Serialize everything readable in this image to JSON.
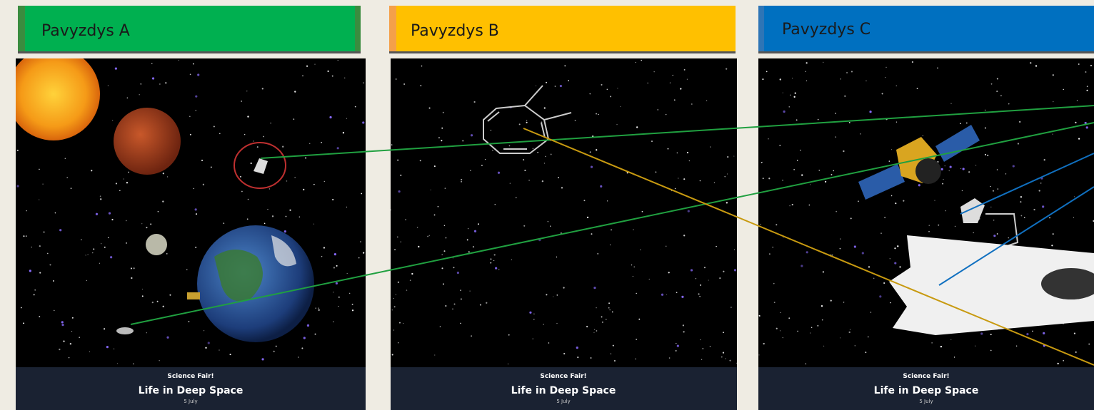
{
  "panels": [
    {
      "title": "Pavyzdys A",
      "poster": {
        "heading": "Science Fair!",
        "title": "Life in Deep Space",
        "date": "5 July"
      }
    },
    {
      "title": "Pavyzdys B",
      "poster": {
        "heading": "Science Fair!",
        "title": "Life in Deep Space",
        "date": "5 July"
      }
    },
    {
      "title": "Pavyzdys C",
      "poster": {
        "heading": "Science Fair!",
        "title": "Life in Deep Space",
        "date": "5 July"
      }
    }
  ]
}
